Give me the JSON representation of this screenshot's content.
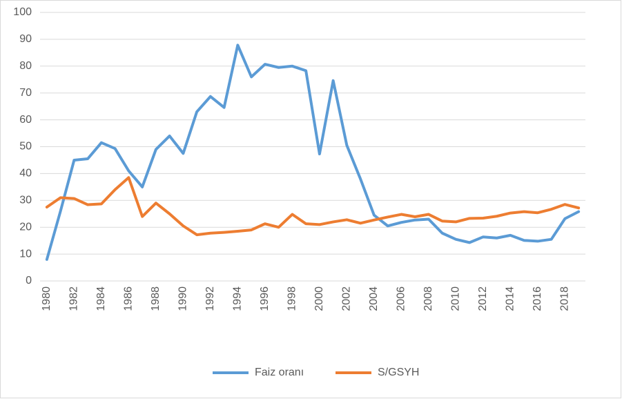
{
  "chart_data": {
    "type": "line",
    "categories": [
      "1980",
      null,
      "1982",
      null,
      "1984",
      null,
      "1986",
      null,
      "1988",
      null,
      "1990",
      null,
      "1992",
      null,
      "1994",
      null,
      "1996",
      null,
      "1998",
      null,
      "2000",
      null,
      "2002",
      null,
      "2004",
      null,
      "2006",
      null,
      "2008",
      null,
      "2010",
      null,
      "2012",
      null,
      "2014",
      null,
      "2016",
      null,
      "2018",
      null
    ],
    "series": [
      {
        "name": "Faiz oranı",
        "color": "#5b9bd5",
        "values": [
          8,
          26,
          45,
          45.5,
          51.5,
          49.3,
          41,
          35,
          49,
          54,
          47.5,
          63,
          68.7,
          64.6,
          87.8,
          76,
          80.7,
          79.5,
          80,
          78.3,
          47.3,
          74.6,
          50.5,
          38,
          24.5,
          20.5,
          21.8,
          22.7,
          23,
          17.8,
          15.5,
          14.3,
          16.4,
          16,
          17,
          15.1,
          14.8,
          15.5,
          23.2,
          25.8
        ]
      },
      {
        "name": "S/GSYH",
        "color": "#ed7d31",
        "values": [
          27.5,
          31,
          30.7,
          28.4,
          28.7,
          34,
          38.5,
          24,
          29,
          25,
          20.5,
          17.2,
          17.8,
          18.1,
          18.5,
          19,
          21.3,
          20,
          24.8,
          21.3,
          21,
          22,
          22.8,
          21.5,
          22.7,
          23.8,
          24.8,
          23.9,
          24.8,
          22.3,
          22,
          23.3,
          23.4,
          24.1,
          25.3,
          25.8,
          25.4,
          26.7,
          28.5,
          27.2
        ]
      }
    ],
    "ylim": [
      0,
      100
    ],
    "yticks": [
      0,
      10,
      20,
      30,
      40,
      50,
      60,
      70,
      80,
      90,
      100
    ],
    "grid": true,
    "legend": "bottom"
  }
}
